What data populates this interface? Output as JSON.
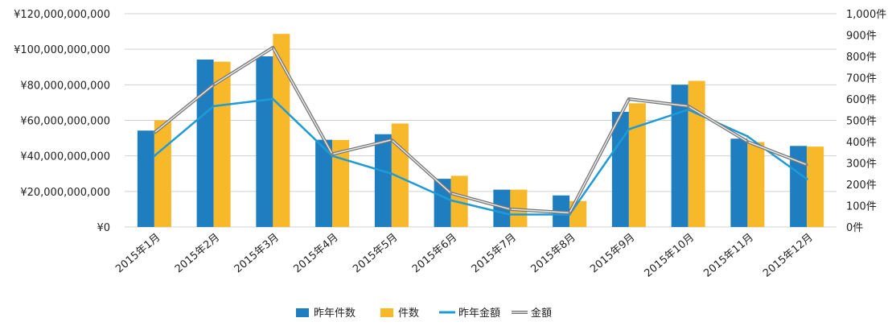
{
  "chart_data": {
    "type": "bar",
    "categories": [
      "2015年1月",
      "2015年2月",
      "2015年3月",
      "2015年4月",
      "2015年5月",
      "2015年6月",
      "2015年7月",
      "2015年8月",
      "2015年9月",
      "2015年10月",
      "2015年11月",
      "2015年12月"
    ],
    "series": [
      {
        "name": "昨年件数",
        "kind": "bar",
        "axis": "right",
        "color": "#1f7ec0",
        "values": [
          452,
          785,
          800,
          409,
          435,
          226,
          175,
          148,
          540,
          667,
          414,
          380
        ]
      },
      {
        "name": "件数",
        "kind": "bar",
        "axis": "right",
        "color": "#f7b829",
        "values": [
          500,
          775,
          905,
          408,
          485,
          240,
          175,
          122,
          580,
          685,
          398,
          377
        ]
      },
      {
        "name": "昨年金額",
        "kind": "line",
        "axis": "left",
        "color": "#1e9bd7",
        "values": [
          40000000000,
          68000000000,
          72000000000,
          40000000000,
          30000000000,
          15000000000,
          7000000000,
          7000000000,
          55000000000,
          66000000000,
          51000000000,
          27000000000
        ]
      },
      {
        "name": "金額",
        "kind": "line",
        "axis": "left",
        "color": "#888888",
        "values": [
          53000000000,
          80000000000,
          101000000000,
          41000000000,
          49000000000,
          19000000000,
          10000000000,
          8000000000,
          72000000000,
          68000000000,
          48000000000,
          35000000000
        ]
      }
    ],
    "left_axis": {
      "ylim": [
        0,
        120000000000
      ],
      "ticks": [
        "¥0",
        "¥20,000,000,000",
        "¥40,000,000,000",
        "¥60,000,000,000",
        "¥80,000,000,000",
        "¥100,000,000,000",
        "¥120,000,000,000"
      ]
    },
    "right_axis": {
      "ylim": [
        0,
        1000
      ],
      "ticks": [
        "0件",
        "100件",
        "200件",
        "300件",
        "400件",
        "500件",
        "600件",
        "700件",
        "800件",
        "900件",
        "1,000件"
      ]
    },
    "grid": true,
    "legend_position": "bottom"
  }
}
